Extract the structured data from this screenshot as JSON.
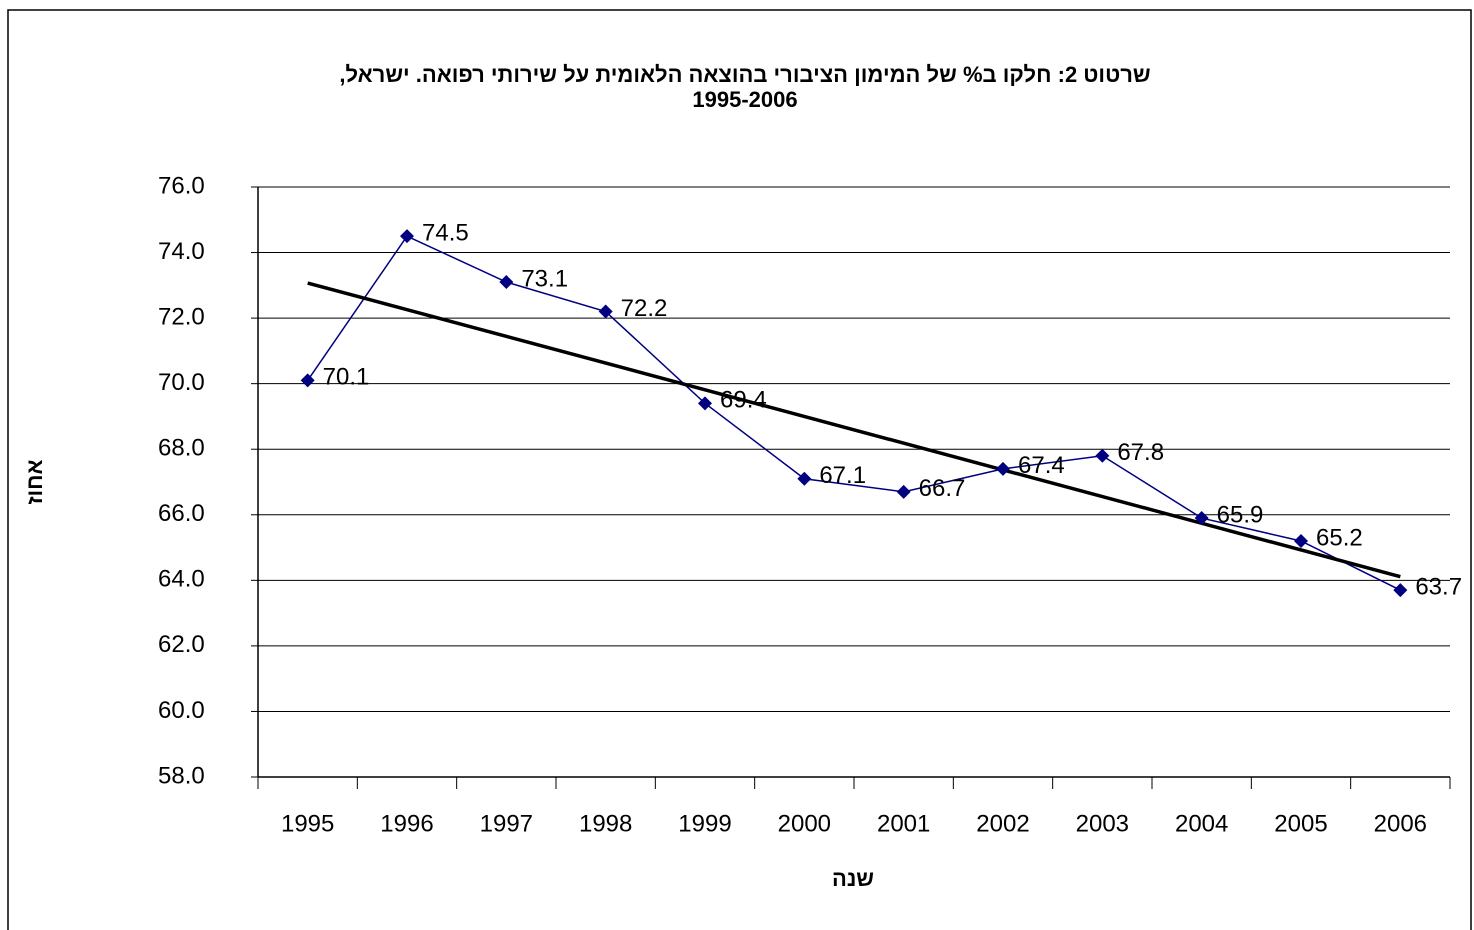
{
  "chart_data": {
    "type": "line",
    "title": [
      "שרטוט 2: חלקו ב% של המימון הציבורי בהוצאה הלאומית  על שירותי רפואה. ישראל,",
      "1995-2006"
    ],
    "x_label": "שנה",
    "y_label": "אחוז",
    "categories": [
      "1995",
      "1996",
      "1997",
      "1998",
      "1999",
      "2000",
      "2001",
      "2002",
      "2003",
      "2004",
      "2005",
      "2006"
    ],
    "series": [
      {
        "color": "#000080",
        "values": [
          70.1,
          74.5,
          73.1,
          72.2,
          69.4,
          67.1,
          66.7,
          67.4,
          67.8,
          65.9,
          65.2,
          63.7
        ]
      }
    ],
    "ylim": [
      58,
      76
    ],
    "yticks": [
      {
        "value": 58,
        "label": "58.0"
      },
      {
        "value": 60,
        "label": "60.0"
      },
      {
        "value": 62,
        "label": "62.0"
      },
      {
        "value": 64,
        "label": "64.0"
      },
      {
        "value": 66,
        "label": "66.0"
      },
      {
        "value": 68,
        "label": "68.0"
      },
      {
        "value": 70,
        "label": "70.0"
      },
      {
        "value": 72,
        "label": "72.0"
      },
      {
        "value": 74,
        "label": "74.0"
      },
      {
        "value": 76,
        "label": "76.0"
      }
    ],
    "grid": true,
    "trendline": true,
    "data_labels": true
  }
}
